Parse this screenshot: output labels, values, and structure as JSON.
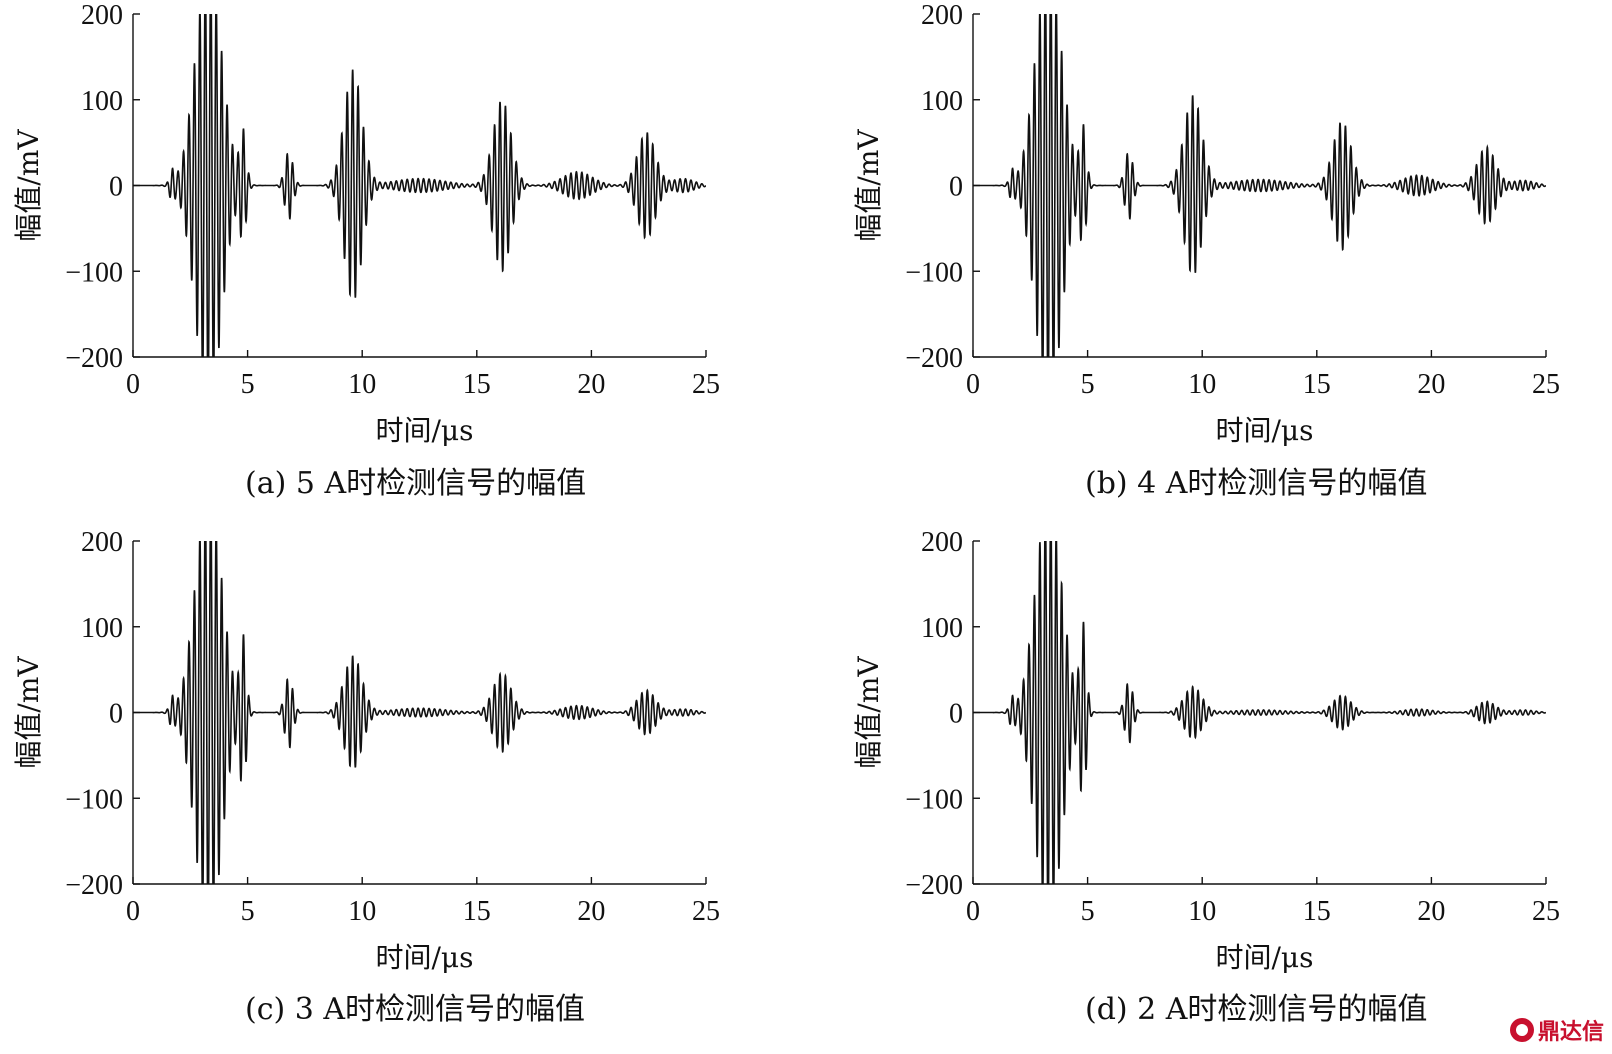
{
  "watermark": {
    "text": "鼎达信",
    "icon": "logo-circle-icon"
  },
  "chart_data": [
    {
      "type": "line",
      "caption": "(a) 5 A时检测信号的幅值",
      "xlabel": "时间/μs",
      "ylabel": "幅值/mV",
      "xlim": [
        0,
        25
      ],
      "ylim": [
        -200,
        200
      ],
      "xticks": [
        "0",
        "5",
        "10",
        "15",
        "20",
        "25"
      ],
      "yticks": [
        "200",
        "100",
        "0",
        "−100",
        "−200"
      ],
      "grid": false,
      "series": [
        {
          "color": "#111111",
          "bursts": [
            {
              "center": 1.7,
              "amp": 15,
              "width": 0.15
            },
            {
              "center": 3.3,
              "amp": 260,
              "width": 0.8
            },
            {
              "center": 4.8,
              "amp": 60,
              "width": 0.2
            },
            {
              "center": 6.8,
              "amp": 40,
              "width": 0.25
            },
            {
              "center": 9.6,
              "amp": 135,
              "width": 0.55
            },
            {
              "center": 12.5,
              "amp": 8,
              "width": 1.6
            },
            {
              "center": 16.1,
              "amp": 100,
              "width": 0.55
            },
            {
              "center": 19.4,
              "amp": 16,
              "width": 0.9
            },
            {
              "center": 22.4,
              "amp": 62,
              "width": 0.55
            },
            {
              "center": 24.0,
              "amp": 8,
              "width": 0.7
            }
          ]
        }
      ]
    },
    {
      "type": "line",
      "caption": "(b) 4 A时检测信号的幅值",
      "xlabel": "时间/μs",
      "ylabel": "幅值/mV",
      "xlim": [
        0,
        25
      ],
      "ylim": [
        -200,
        200
      ],
      "xticks": [
        "0",
        "5",
        "10",
        "15",
        "20",
        "25"
      ],
      "yticks": [
        "200",
        "100",
        "0",
        "−100",
        "−200"
      ],
      "grid": false,
      "series": [
        {
          "color": "#111111",
          "bursts": [
            {
              "center": 1.7,
              "amp": 15,
              "width": 0.15
            },
            {
              "center": 3.3,
              "amp": 260,
              "width": 0.8
            },
            {
              "center": 4.8,
              "amp": 65,
              "width": 0.2
            },
            {
              "center": 6.8,
              "amp": 40,
              "width": 0.25
            },
            {
              "center": 9.6,
              "amp": 105,
              "width": 0.55
            },
            {
              "center": 12.5,
              "amp": 7,
              "width": 1.6
            },
            {
              "center": 16.1,
              "amp": 75,
              "width": 0.55
            },
            {
              "center": 19.4,
              "amp": 12,
              "width": 0.9
            },
            {
              "center": 22.4,
              "amp": 45,
              "width": 0.55
            },
            {
              "center": 24.0,
              "amp": 6,
              "width": 0.7
            }
          ]
        }
      ]
    },
    {
      "type": "line",
      "caption": "(c) 3 A时检测信号的幅值",
      "xlabel": "时间/μs",
      "ylabel": "幅值/mV",
      "xlim": [
        0,
        25
      ],
      "ylim": [
        -200,
        200
      ],
      "xticks": [
        "0",
        "5",
        "10",
        "15",
        "20",
        "25"
      ],
      "yticks": [
        "200",
        "100",
        "0",
        "−100",
        "−200"
      ],
      "grid": false,
      "series": [
        {
          "color": "#111111",
          "bursts": [
            {
              "center": 1.7,
              "amp": 15,
              "width": 0.15
            },
            {
              "center": 3.3,
              "amp": 260,
              "width": 0.8
            },
            {
              "center": 4.8,
              "amp": 85,
              "width": 0.2
            },
            {
              "center": 6.8,
              "amp": 42,
              "width": 0.25
            },
            {
              "center": 9.6,
              "amp": 66,
              "width": 0.55
            },
            {
              "center": 12.5,
              "amp": 5,
              "width": 1.6
            },
            {
              "center": 16.1,
              "amp": 46,
              "width": 0.55
            },
            {
              "center": 19.4,
              "amp": 8,
              "width": 0.9
            },
            {
              "center": 22.4,
              "amp": 26,
              "width": 0.55
            },
            {
              "center": 24.0,
              "amp": 4,
              "width": 0.7
            }
          ]
        }
      ]
    },
    {
      "type": "line",
      "caption": "(d) 2 A时检测信号的幅值",
      "xlabel": "时间/μs",
      "ylabel": "幅值/mV",
      "xlim": [
        0,
        25
      ],
      "ylim": [
        -200,
        200
      ],
      "xticks": [
        "0",
        "5",
        "10",
        "15",
        "20",
        "25"
      ],
      "yticks": [
        "200",
        "100",
        "0",
        "−100",
        "−200"
      ],
      "grid": false,
      "series": [
        {
          "color": "#111111",
          "bursts": [
            {
              "center": 1.7,
              "amp": 15,
              "width": 0.15
            },
            {
              "center": 3.3,
              "amp": 250,
              "width": 0.8
            },
            {
              "center": 4.8,
              "amp": 100,
              "width": 0.2
            },
            {
              "center": 6.8,
              "amp": 36,
              "width": 0.25
            },
            {
              "center": 9.6,
              "amp": 30,
              "width": 0.55
            },
            {
              "center": 12.5,
              "amp": 3,
              "width": 1.6
            },
            {
              "center": 16.1,
              "amp": 20,
              "width": 0.55
            },
            {
              "center": 19.4,
              "amp": 4,
              "width": 0.9
            },
            {
              "center": 22.4,
              "amp": 13,
              "width": 0.55
            },
            {
              "center": 24.0,
              "amp": 3,
              "width": 0.7
            }
          ]
        }
      ]
    }
  ]
}
